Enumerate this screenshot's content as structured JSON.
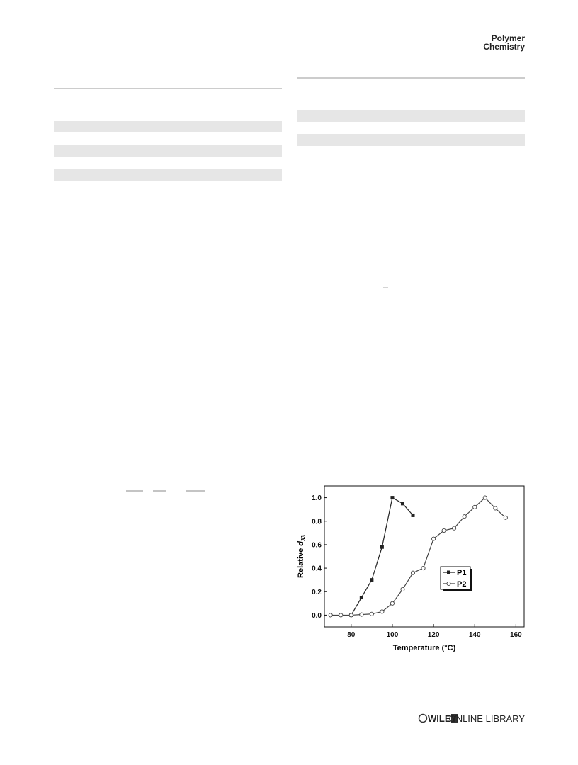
{
  "header": {
    "journal": [
      "Polymer",
      "Chemistry"
    ]
  },
  "footer": {
    "publisher": "WILEY",
    "library": "ONLINE LIBRARY"
  },
  "chart_data": {
    "type": "line",
    "xlabel": "Temperature (°C)",
    "ylabel": {
      "text": "Relative ",
      "symbol": "d",
      "subscript": "33"
    },
    "xlim": [
      67,
      164
    ],
    "xticks": [
      80,
      100,
      120,
      140,
      160
    ],
    "ylim": [
      -0.1,
      1.1
    ],
    "yticks": [
      {
        "value": 0,
        "label": "0.0"
      },
      0.2,
      0.4,
      0.6,
      0.8,
      {
        "value": 1,
        "label": "1.0"
      }
    ],
    "grid": false,
    "legend": "center-right",
    "series": [
      {
        "name": "P1",
        "color": "#222222",
        "marker": "square",
        "x": [
          80,
          85,
          90,
          95,
          100,
          105,
          110
        ],
        "values": [
          0,
          0.15,
          0.3,
          0.58,
          1.0,
          0.95,
          0.85
        ]
      },
      {
        "name": "P2",
        "color": "#444444",
        "marker": "circle",
        "x": [
          70,
          75,
          80,
          85,
          90,
          95,
          100,
          105,
          110,
          115,
          120,
          125,
          130,
          135,
          140,
          145,
          150,
          155
        ],
        "values": [
          0,
          0,
          0,
          0.005,
          0.01,
          0.03,
          0.1,
          0.22,
          0.36,
          0.4,
          0.65,
          0.72,
          0.74,
          0.84,
          0.92,
          1.0,
          0.91,
          0.83
        ]
      }
    ]
  }
}
